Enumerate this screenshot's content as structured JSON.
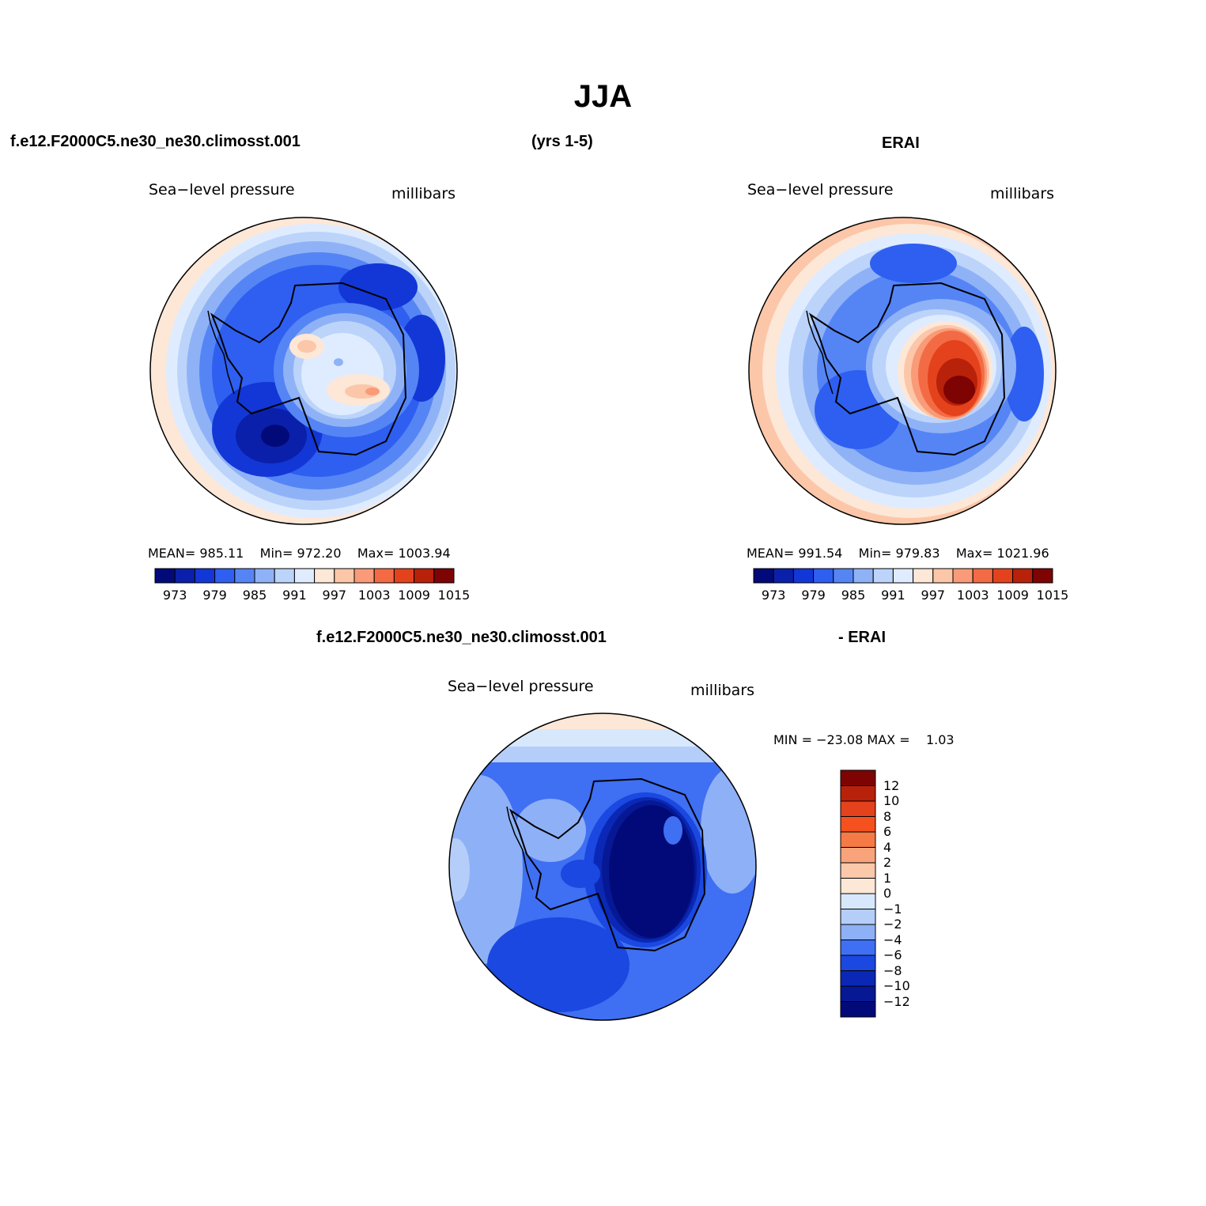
{
  "title": "JJA",
  "header": {
    "case_name": "f.e12.F2000C5.ne30_ne30.climosst.001",
    "years": "(yrs 1-5)",
    "obs_name": "ERAI"
  },
  "diff_header": {
    "case_name": "f.e12.F2000C5.ne30_ne30.climosst.001",
    "obs_name": "- ERAI"
  },
  "panels": [
    {
      "id": "model",
      "variable": "Sea−level pressure",
      "units": "millibars",
      "stats": {
        "mean_label": "MEAN=",
        "mean": "985.11",
        "min_label": "Min=",
        "min": "972.20",
        "max_label": "Max=",
        "max": "1003.94"
      },
      "colorbar_ticks": [
        "973",
        "979",
        "985",
        "991",
        "997",
        "1003",
        "1009",
        "1015"
      ],
      "colorbar_colors": [
        "#020a7a",
        "#0a20aa",
        "#1237d6",
        "#2e5ff0",
        "#5585f5",
        "#8fb2f7",
        "#bcd4fa",
        "#dfecff",
        "#fde7d7",
        "#fcc6a8",
        "#f99b78",
        "#f36b45",
        "#e4421c",
        "#b8210a",
        "#7e0303"
      ]
    },
    {
      "id": "obs",
      "variable": "Sea−level pressure",
      "units": "millibars",
      "stats": {
        "mean_label": "MEAN=",
        "mean": "991.54",
        "min_label": "Min=",
        "min": "979.83",
        "max_label": "Max=",
        "max": "1021.96"
      },
      "colorbar_ticks": [
        "973",
        "979",
        "985",
        "991",
        "997",
        "1003",
        "1009",
        "1015"
      ],
      "colorbar_colors": [
        "#020a7a",
        "#0a20aa",
        "#1237d6",
        "#2e5ff0",
        "#5585f5",
        "#8fb2f7",
        "#bcd4fa",
        "#dfecff",
        "#fde7d7",
        "#fcc6a8",
        "#f99b78",
        "#f36b45",
        "#e4421c",
        "#b8210a",
        "#7e0303"
      ]
    },
    {
      "id": "diff",
      "variable": "Sea−level pressure",
      "units": "millibars",
      "stats": {
        "min_label": "MIN =",
        "min": "−23.08",
        "max_label": "MAX =",
        "max": "1.03"
      },
      "colorbar_ticks": [
        "12",
        "10",
        "8",
        "6",
        "4",
        "2",
        "1",
        "0",
        "−1",
        "−2",
        "−4",
        "−6",
        "−8",
        "−10",
        "−12"
      ],
      "colorbar_colors": [
        "#7e0303",
        "#b8210a",
        "#e4421c",
        "#f5511f",
        "#f57a45",
        "#f9a37a",
        "#fcc8aa",
        "#fde7d7",
        "#d8e8fc",
        "#b5cef9",
        "#8eb0f6",
        "#3f6ff2",
        "#1a48e0",
        "#0a28b5",
        "#061894",
        "#020a7a"
      ]
    }
  ],
  "chart_data": [
    {
      "type": "heatmap",
      "projection": "polar stereographic (south pole)",
      "title": "Sea−level pressure",
      "units": "millibars",
      "dataset": "f.e12.F2000C5.ne30_ne30.climosst.001",
      "mean": 985.11,
      "min": 972.2,
      "max": 1003.94,
      "levels": [
        973,
        976,
        979,
        982,
        985,
        988,
        991,
        994,
        997,
        1000,
        1003,
        1006,
        1009,
        1012,
        1015
      ]
    },
    {
      "type": "heatmap",
      "projection": "polar stereographic (south pole)",
      "title": "Sea−level pressure",
      "units": "millibars",
      "dataset": "ERAI",
      "mean": 991.54,
      "min": 979.83,
      "max": 1021.96,
      "levels": [
        973,
        976,
        979,
        982,
        985,
        988,
        991,
        994,
        997,
        1000,
        1003,
        1006,
        1009,
        1012,
        1015
      ]
    },
    {
      "type": "heatmap",
      "projection": "polar stereographic (south pole)",
      "title": "Sea−level pressure",
      "units": "millibars",
      "dataset": "f.e12.F2000C5.ne30_ne30.climosst.001 - ERAI",
      "min": -23.08,
      "max": 1.03,
      "levels": [
        12,
        10,
        8,
        6,
        4,
        2,
        1,
        0,
        -1,
        -2,
        -4,
        -6,
        -8,
        -10,
        -12
      ]
    }
  ]
}
